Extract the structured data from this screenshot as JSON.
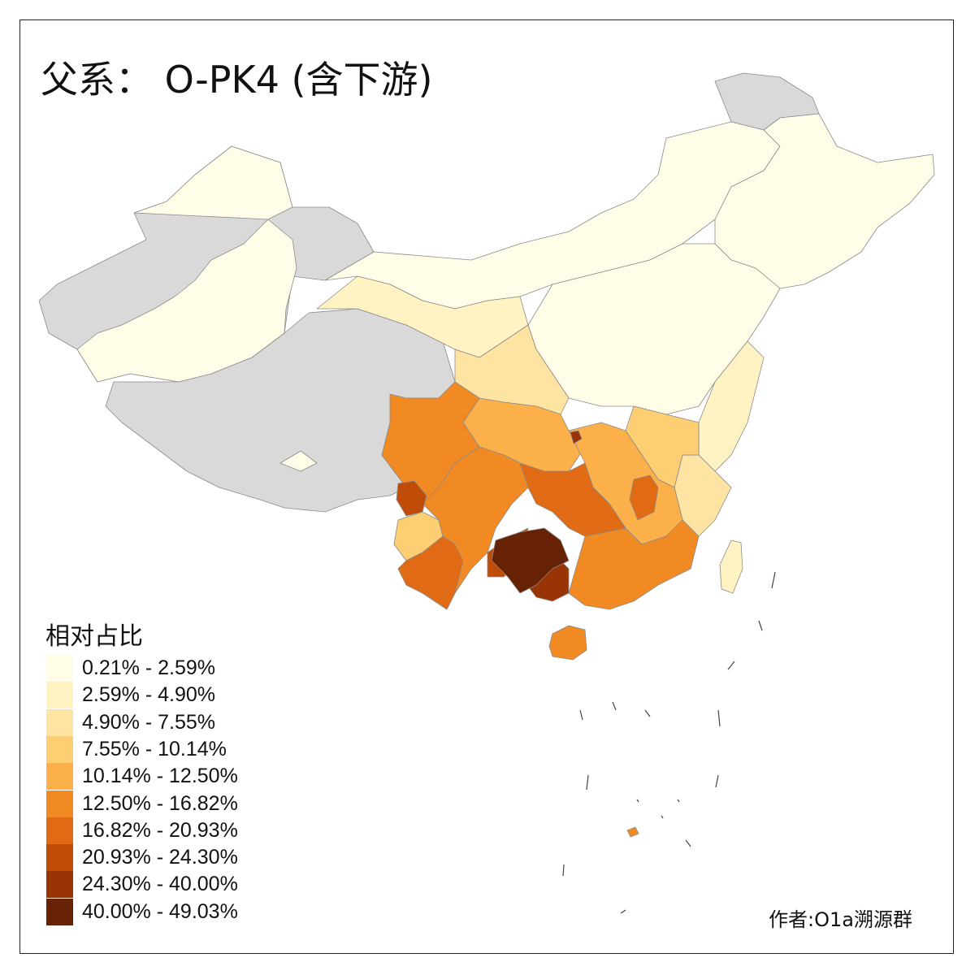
{
  "title": "父系： O-PK4 (含下游)",
  "legend": {
    "title": "相对占比",
    "items": [
      {
        "label": "0.21% - 2.59%",
        "color": "#fffde8"
      },
      {
        "label": "2.59% - 4.90%",
        "color": "#fff3c4"
      },
      {
        "label": "4.90% - 7.55%",
        "color": "#fee4a2"
      },
      {
        "label": "7.55% - 10.14%",
        "color": "#fdce72"
      },
      {
        "label": "10.14% - 12.50%",
        "color": "#fbb04a"
      },
      {
        "label": "12.50% - 16.82%",
        "color": "#f28a24"
      },
      {
        "label": "16.82% - 20.93%",
        "color": "#e06b14"
      },
      {
        "label": "20.93% - 24.30%",
        "color": "#c04c08"
      },
      {
        "label": "24.30% - 40.00%",
        "color": "#983406"
      },
      {
        "label": "40.00% - 49.03%",
        "color": "#672205"
      }
    ]
  },
  "no_data_color": "#d9d9d9",
  "credit": "作者:O1a溯源群"
}
